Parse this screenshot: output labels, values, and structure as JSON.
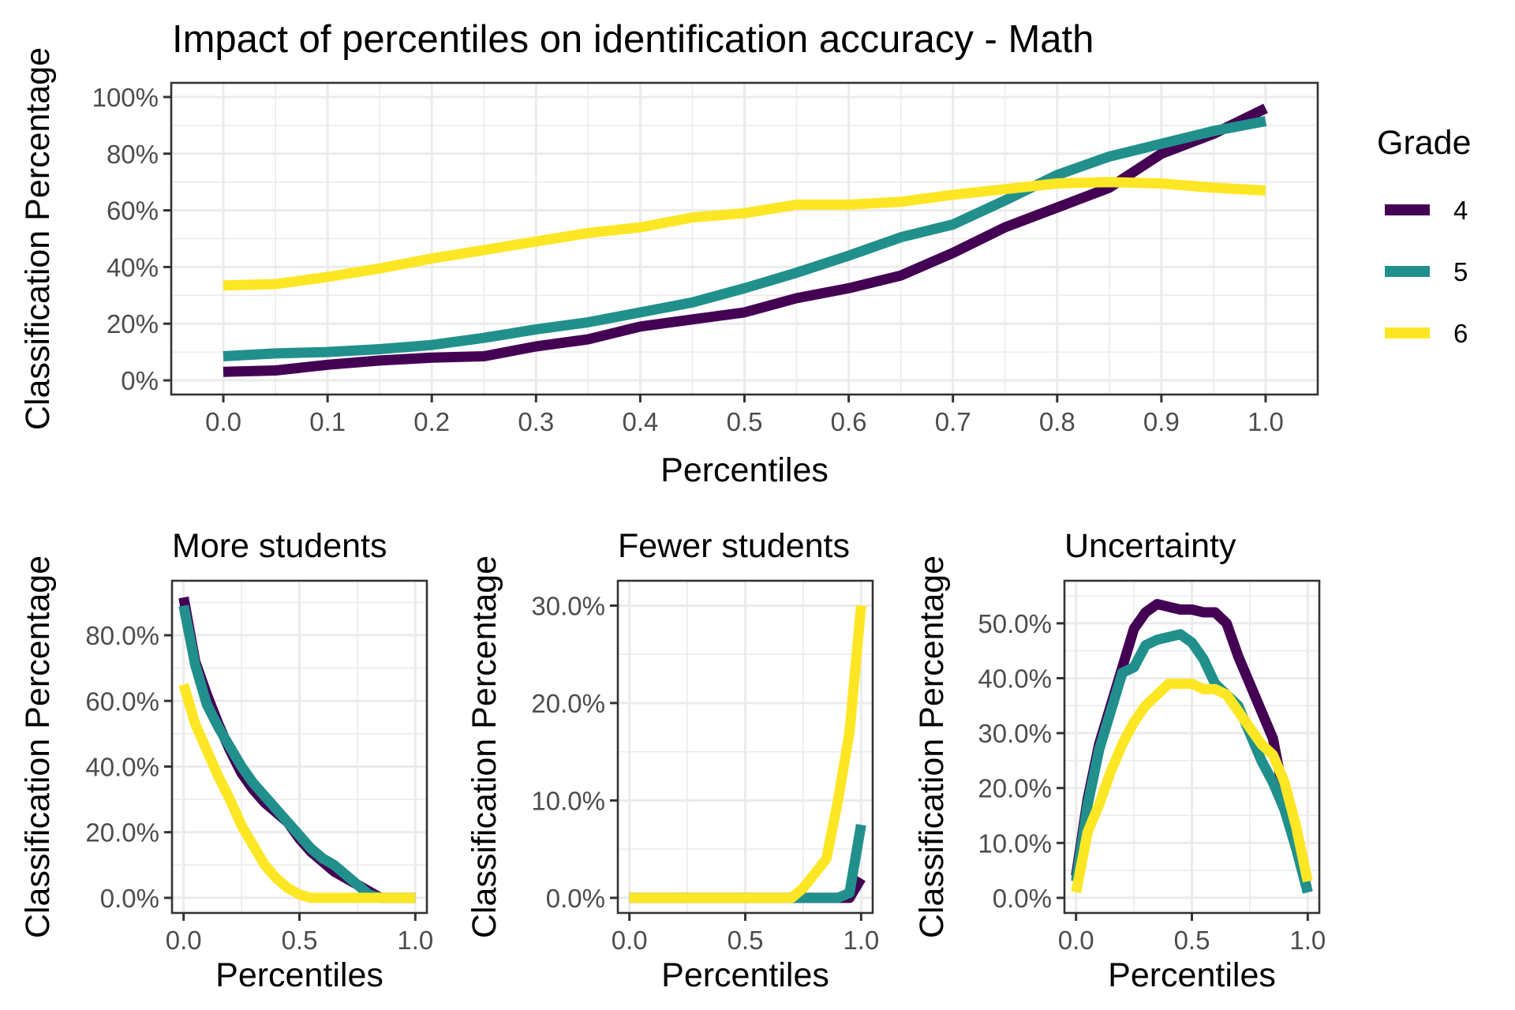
{
  "title": "Impact of percentiles on identification accuracy - Math",
  "legend": {
    "title": "Grade",
    "placement": "right",
    "items": [
      {
        "label": "4",
        "color": "#440154"
      },
      {
        "label": "5",
        "color": "#21908C"
      },
      {
        "label": "6",
        "color": "#FDE725"
      }
    ]
  },
  "chart_data": [
    {
      "type": "line",
      "title": "Impact of percentiles on identification accuracy - Math",
      "xlabel": "Percentiles",
      "ylabel": "Classification Percentage",
      "xlim": [
        0,
        1
      ],
      "ylim": [
        0,
        100
      ],
      "grid": true,
      "x_ticks": [
        "0.0",
        "0.1",
        "0.2",
        "0.3",
        "0.4",
        "0.5",
        "0.6",
        "0.7",
        "0.8",
        "0.9",
        "1.0"
      ],
      "y_ticks": [
        "0%",
        "20%",
        "40%",
        "60%",
        "80%",
        "100%"
      ],
      "x": [
        0,
        0.05,
        0.1,
        0.15,
        0.2,
        0.25,
        0.3,
        0.35,
        0.4,
        0.45,
        0.5,
        0.55,
        0.6,
        0.65,
        0.7,
        0.75,
        0.8,
        0.85,
        0.9,
        0.95,
        1.0
      ],
      "series": [
        {
          "name": "4",
          "values": [
            3,
            3.5,
            5.5,
            7,
            8,
            8.5,
            12,
            14.5,
            19,
            21.5,
            24,
            29,
            32.5,
            37,
            45,
            54,
            61,
            68,
            80,
            87,
            96
          ]
        },
        {
          "name": "5",
          "values": [
            8.5,
            9.5,
            10,
            11,
            12.5,
            15,
            18,
            20.5,
            24,
            27.5,
            32.5,
            38,
            44,
            50.5,
            55,
            63.5,
            72.5,
            79,
            83.5,
            88,
            91.5
          ]
        },
        {
          "name": "6",
          "values": [
            33.5,
            34,
            36.5,
            39.5,
            43,
            46,
            49,
            52,
            54,
            57.5,
            59,
            62,
            62,
            63,
            65.5,
            67.5,
            69.5,
            70,
            69.5,
            68,
            67
          ]
        }
      ]
    },
    {
      "type": "line",
      "title": "More students",
      "xlabel": "Percentiles",
      "ylabel": "Classification Percentage",
      "xlim": [
        0,
        1
      ],
      "ylim": [
        0,
        92
      ],
      "grid": true,
      "x_ticks": [
        "0.0",
        "0.5",
        "1.0"
      ],
      "y_ticks": [
        "0.0%",
        "20.0%",
        "40.0%",
        "60.0%",
        "80.0%"
      ],
      "x": [
        0,
        0.05,
        0.1,
        0.15,
        0.2,
        0.25,
        0.3,
        0.35,
        0.4,
        0.45,
        0.5,
        0.55,
        0.6,
        0.65,
        0.7,
        0.75,
        0.8,
        0.85,
        0.9,
        0.95,
        1.0
      ],
      "series": [
        {
          "name": "4",
          "values": [
            91.5,
            72,
            62,
            53,
            45,
            38,
            33,
            29,
            26,
            23,
            18,
            14,
            11,
            8,
            6,
            4,
            2,
            0,
            0,
            0,
            0
          ]
        },
        {
          "name": "5",
          "values": [
            89,
            71,
            59,
            52,
            46,
            40,
            35,
            31,
            27,
            23,
            19,
            15,
            12,
            10,
            7,
            4,
            1,
            0,
            0,
            0,
            0
          ]
        },
        {
          "name": "6",
          "values": [
            65,
            53,
            45,
            37,
            30,
            22,
            16,
            10,
            6,
            3,
            1,
            0,
            0,
            0,
            0,
            0,
            0,
            0,
            0,
            0,
            0
          ]
        }
      ]
    },
    {
      "type": "line",
      "title": "Fewer students",
      "xlabel": "Percentiles",
      "ylabel": "Classification Percentage",
      "xlim": [
        0,
        1
      ],
      "ylim": [
        0,
        31
      ],
      "grid": true,
      "x_ticks": [
        "0.0",
        "0.5",
        "1.0"
      ],
      "y_ticks": [
        "0.0%",
        "10.0%",
        "20.0%",
        "30.0%"
      ],
      "x": [
        0,
        0.05,
        0.1,
        0.15,
        0.2,
        0.25,
        0.3,
        0.35,
        0.4,
        0.45,
        0.5,
        0.55,
        0.6,
        0.65,
        0.7,
        0.75,
        0.8,
        0.85,
        0.9,
        0.95,
        1.0
      ],
      "series": [
        {
          "name": "4",
          "values": [
            0,
            0,
            0,
            0,
            0,
            0,
            0,
            0,
            0,
            0,
            0,
            0,
            0,
            0,
            0,
            0,
            0,
            0,
            0,
            0,
            2
          ]
        },
        {
          "name": "5",
          "values": [
            0,
            0,
            0,
            0,
            0,
            0,
            0,
            0,
            0,
            0,
            0,
            0,
            0,
            0,
            0,
            0,
            0,
            0,
            0,
            0.5,
            7.5
          ]
        },
        {
          "name": "6",
          "values": [
            0,
            0,
            0,
            0,
            0,
            0,
            0,
            0,
            0,
            0,
            0,
            0,
            0,
            0,
            0,
            1,
            2.5,
            4,
            10,
            17,
            30
          ]
        }
      ]
    },
    {
      "type": "line",
      "title": "Uncertainty",
      "xlabel": "Percentiles",
      "ylabel": "Classification Percentage",
      "xlim": [
        0,
        1
      ],
      "ylim": [
        0,
        55
      ],
      "grid": true,
      "x_ticks": [
        "0.0",
        "0.5",
        "1.0"
      ],
      "y_ticks": [
        "0.0%",
        "10.0%",
        "20.0%",
        "30.0%",
        "40.0%",
        "50.0%"
      ],
      "x": [
        0,
        0.05,
        0.1,
        0.15,
        0.2,
        0.25,
        0.3,
        0.35,
        0.4,
        0.45,
        0.5,
        0.55,
        0.6,
        0.65,
        0.7,
        0.75,
        0.8,
        0.85,
        0.9,
        0.95,
        1.0
      ],
      "series": [
        {
          "name": "4",
          "values": [
            4,
            18,
            28,
            35,
            42,
            49,
            52,
            53.5,
            53,
            52.5,
            52.5,
            52,
            52,
            50,
            44,
            39,
            34,
            29,
            18,
            10,
            1
          ]
        },
        {
          "name": "5",
          "values": [
            3,
            17,
            27,
            34,
            41,
            42,
            46,
            47,
            47.5,
            48,
            46.5,
            43.5,
            39,
            37,
            35,
            30,
            25,
            21,
            16,
            9,
            1
          ]
        },
        {
          "name": "6",
          "values": [
            1,
            12,
            17,
            23,
            28,
            32,
            35,
            37,
            39,
            39,
            39,
            38,
            38,
            37,
            34,
            31,
            28,
            26,
            21,
            13,
            3
          ]
        }
      ]
    }
  ]
}
